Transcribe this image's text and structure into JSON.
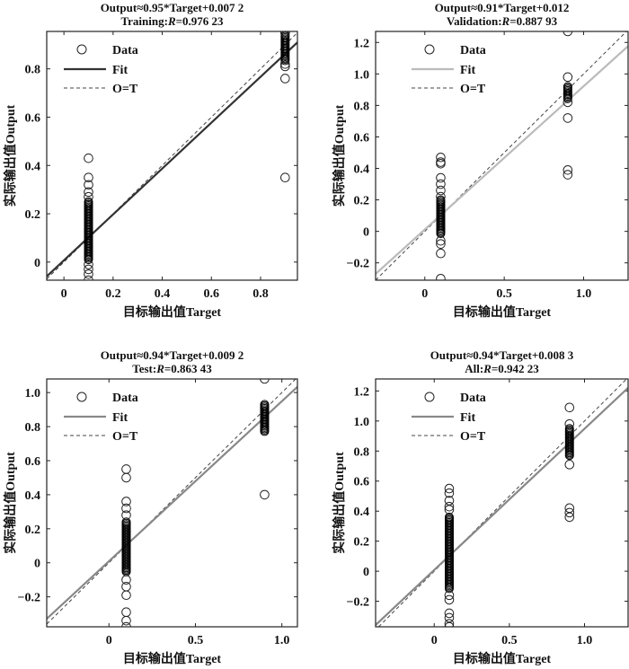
{
  "chart_data": [
    {
      "type": "scatter",
      "title_line1": "Output≈0.95*Target+0.007 2",
      "title_prefix": "Training:",
      "title_r": "R",
      "title_value": "=0.976 23",
      "xlabel": "目标输出值Target",
      "ylabel": "实际输出值Output",
      "xlim": [
        -0.07,
        0.95
      ],
      "ylim": [
        -0.075,
        0.955
      ],
      "xticks": [
        0,
        0.2,
        0.4,
        0.6,
        0.8
      ],
      "xtick_labels": [
        "0",
        "0.2",
        "0.4",
        "0.6",
        "0.8"
      ],
      "yticks": [
        0,
        0.2,
        0.4,
        0.6,
        0.8
      ],
      "ytick_labels": [
        "0",
        "0.2",
        "0.4",
        "0.6",
        "0.8"
      ],
      "fit": {
        "slope": 0.95,
        "intercept": 0.0072,
        "color": "#333333"
      },
      "legend": {
        "data": "Data",
        "fit": "Fit",
        "ot": "O=T",
        "placement": "top-left"
      },
      "points": [
        {
          "x": 0.1,
          "dense": [
            0.01,
            0.25
          ],
          "y": [
            0.27,
            0.29,
            0.32,
            0.35,
            0.43,
            -0.01,
            -0.03,
            -0.05,
            -0.08
          ]
        },
        {
          "x": 0.9,
          "dense": [
            0.83,
            0.94
          ],
          "y": [
            0.76,
            0.81,
            0.82,
            0.95,
            0.35
          ]
        }
      ]
    },
    {
      "type": "scatter",
      "title_line1": "Output≈0.91*Target+0.012",
      "title_prefix": "Validation:",
      "title_r": "R",
      "title_value": "=0.887 93",
      "xlabel": "目标输出值Target",
      "ylabel": "实际输出值Output",
      "xlim": [
        -0.31,
        1.28
      ],
      "ylim": [
        -0.31,
        1.27
      ],
      "xticks": [
        0,
        0.5,
        1.0
      ],
      "xtick_labels": [
        "0",
        "0.5",
        "1.0"
      ],
      "yticks": [
        -0.2,
        0,
        0.2,
        0.4,
        0.6,
        0.8,
        1.0,
        1.2
      ],
      "ytick_labels": [
        "−0.2",
        "0",
        "0.2",
        "0.4",
        "0.6",
        "0.8",
        "1.0",
        "1.2"
      ],
      "fit": {
        "slope": 0.91,
        "intercept": 0.012,
        "color": "#bbbbbb"
      },
      "legend": {
        "data": "Data",
        "fit": "Fit",
        "ot": "O=T",
        "placement": "top-left"
      },
      "points": [
        {
          "x": 0.1,
          "dense": [
            -0.02,
            0.2
          ],
          "y": [
            0.22,
            0.26,
            0.3,
            0.34,
            0.43,
            0.44,
            0.47,
            -0.06,
            -0.08,
            -0.14,
            -0.3
          ]
        },
        {
          "x": 0.9,
          "dense": [
            0.84,
            0.92
          ],
          "y": [
            0.82,
            0.98,
            0.72,
            0.39,
            0.36,
            1.27
          ]
        }
      ]
    },
    {
      "type": "scatter",
      "title_line1": "Output≈0.94*Target+0.009 2",
      "title_prefix": "Test:",
      "title_r": "R",
      "title_value": "=0.863 43",
      "xlabel": "目标输出值Target",
      "ylabel": "实际输出值Output",
      "xlim": [
        -0.36,
        1.09
      ],
      "ylim": [
        -0.376,
        1.08
      ],
      "xticks": [
        0,
        0.5,
        1.0
      ],
      "xtick_labels": [
        "0",
        "0.5",
        "1.0"
      ],
      "yticks": [
        -0.2,
        0,
        0.2,
        0.4,
        0.6,
        0.8,
        1.0
      ],
      "ytick_labels": [
        "−0.2",
        "0",
        "0.2",
        "0.4",
        "0.6",
        "0.8",
        "1.0"
      ],
      "fit": {
        "slope": 0.94,
        "intercept": 0.0092,
        "color": "#888888"
      },
      "legend": {
        "data": "Data",
        "fit": "Fit",
        "ot": "O=T",
        "placement": "top-left"
      },
      "points": [
        {
          "x": 0.1,
          "dense": [
            -0.06,
            0.24
          ],
          "y": [
            0.28,
            0.32,
            0.36,
            0.5,
            0.55,
            -0.1,
            -0.14,
            -0.19,
            -0.29,
            -0.34,
            -0.38
          ]
        },
        {
          "x": 0.9,
          "dense": [
            0.77,
            0.93
          ],
          "y": [
            1.08,
            0.4
          ]
        }
      ]
    },
    {
      "type": "scatter",
      "title_line1": "Output≈0.94*Target+0.008 3",
      "title_prefix": "All:",
      "title_r": "R",
      "title_value": "=0.942 23",
      "xlabel": "目标输出值Target",
      "ylabel": "实际输出值Output",
      "xlim": [
        -0.39,
        1.29
      ],
      "ylim": [
        -0.37,
        1.28
      ],
      "xticks": [
        0,
        0.5,
        1.0
      ],
      "xtick_labels": [
        "0",
        "0.5",
        "1.0"
      ],
      "yticks": [
        -0.2,
        0,
        0.2,
        0.4,
        0.6,
        0.8,
        1.0,
        1.2
      ],
      "ytick_labels": [
        "−0.2",
        "0",
        "0.2",
        "0.4",
        "0.6",
        "0.8",
        "1.0",
        "1.2"
      ],
      "fit": {
        "slope": 0.94,
        "intercept": 0.0083,
        "color": "#888888"
      },
      "legend": {
        "data": "Data",
        "fit": "Fit",
        "ot": "O=T",
        "placement": "top-left"
      },
      "points": [
        {
          "x": 0.1,
          "dense": [
            -0.12,
            0.36
          ],
          "y": [
            0.41,
            0.43,
            0.47,
            0.52,
            0.55,
            -0.16,
            -0.19,
            -0.28,
            -0.31,
            -0.35,
            -0.38
          ]
        },
        {
          "x": 0.9,
          "dense": [
            0.77,
            0.95
          ],
          "y": [
            0.71,
            0.98,
            1.09,
            0.42,
            0.39,
            0.36
          ]
        }
      ]
    }
  ]
}
